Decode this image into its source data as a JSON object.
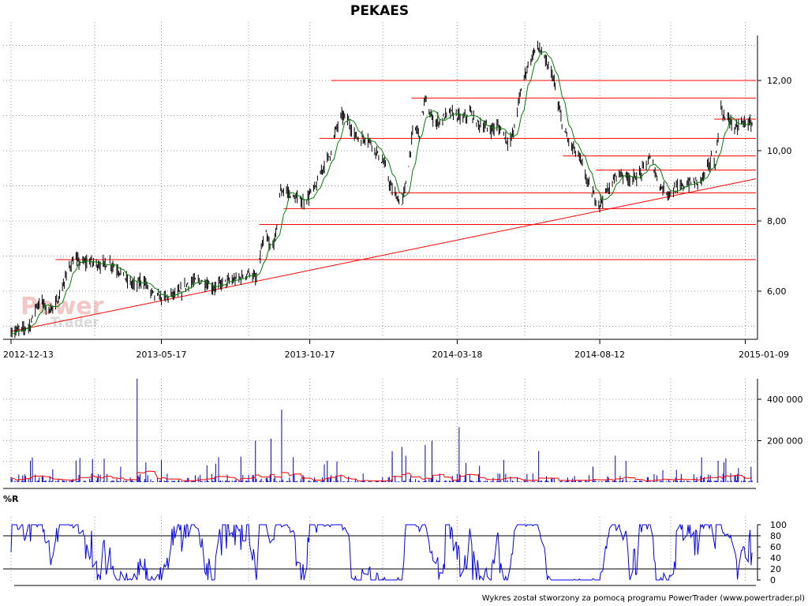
{
  "title": "PEKAES",
  "footer": "Wykres został stworzony za pomocą programu PowerTrader (www.powertrader.pl)",
  "watermark": {
    "line1": "Power",
    "line2": "Trader"
  },
  "colors": {
    "price": "#000000",
    "ma": "#008000",
    "support": "#ff0000",
    "volume": "#0000cc",
    "volume_ma": "#ff0000",
    "wr": "#0000ff",
    "grid": "#999999"
  },
  "chart_data": [
    {
      "type": "line",
      "name": "price",
      "title": "PEKAES",
      "x_ticks": [
        "2012-12-13",
        "2013-05-17",
        "2013-10-17",
        "2014-03-18",
        "2014-08-12",
        "2015-01-09"
      ],
      "x_range": [
        "2012-12-13",
        "2015-01-20"
      ],
      "y_ticks": [
        "6,00",
        "8,00",
        "10,00",
        "12,00"
      ],
      "ylim": [
        4.85,
        13.3
      ],
      "grid": true,
      "series_close": [
        [
          "2012-12-13",
          4.85
        ],
        [
          "2012-12-24",
          4.9
        ],
        [
          "2013-01-02",
          5.05
        ],
        [
          "2013-01-08",
          5.6
        ],
        [
          "2013-01-14",
          5.7
        ],
        [
          "2013-01-20",
          5.45
        ],
        [
          "2013-01-28",
          5.6
        ],
        [
          "2013-02-04",
          6.1
        ],
        [
          "2013-02-11",
          6.7
        ],
        [
          "2013-02-16",
          6.9
        ],
        [
          "2013-02-25",
          6.8
        ],
        [
          "2013-03-05",
          6.85
        ],
        [
          "2013-03-15",
          6.75
        ],
        [
          "2013-03-25",
          6.8
        ],
        [
          "2013-04-03",
          6.6
        ],
        [
          "2013-04-12",
          6.3
        ],
        [
          "2013-04-20",
          6.15
        ],
        [
          "2013-04-28",
          6.35
        ],
        [
          "2013-05-05",
          6.0
        ],
        [
          "2013-05-12",
          5.85
        ],
        [
          "2013-05-20",
          5.8
        ],
        [
          "2013-05-28",
          5.9
        ],
        [
          "2013-06-05",
          5.95
        ],
        [
          "2013-06-13",
          6.2
        ],
        [
          "2013-06-22",
          6.3
        ],
        [
          "2013-07-01",
          6.25
        ],
        [
          "2013-07-10",
          6.1
        ],
        [
          "2013-07-20",
          6.25
        ],
        [
          "2013-07-30",
          6.3
        ],
        [
          "2013-08-08",
          6.4
        ],
        [
          "2013-08-16",
          6.55
        ],
        [
          "2013-08-23",
          6.3
        ],
        [
          "2013-08-28",
          7.2
        ],
        [
          "2013-09-02",
          7.6
        ],
        [
          "2013-09-07",
          7.1
        ],
        [
          "2013-09-12",
          7.6
        ],
        [
          "2013-09-16",
          8.8
        ],
        [
          "2013-09-22",
          8.9
        ],
        [
          "2013-09-28",
          8.7
        ],
        [
          "2013-10-05",
          8.6
        ],
        [
          "2013-10-12",
          8.55
        ],
        [
          "2013-10-18",
          8.8
        ],
        [
          "2013-10-24",
          9.0
        ],
        [
          "2013-10-30",
          9.5
        ],
        [
          "2013-11-07",
          9.9
        ],
        [
          "2013-11-13",
          10.6
        ],
        [
          "2013-11-19",
          11.0
        ],
        [
          "2013-11-25",
          10.9
        ],
        [
          "2013-12-01",
          10.5
        ],
        [
          "2013-12-08",
          10.3
        ],
        [
          "2013-12-14",
          10.4
        ],
        [
          "2013-12-20",
          10.2
        ],
        [
          "2013-12-26",
          9.9
        ],
        [
          "2014-01-02",
          9.6
        ],
        [
          "2014-01-08",
          9.0
        ],
        [
          "2014-01-14",
          8.7
        ],
        [
          "2014-01-20",
          8.45
        ],
        [
          "2014-01-26",
          9.4
        ],
        [
          "2014-02-01",
          10.7
        ],
        [
          "2014-02-07",
          10.5
        ],
        [
          "2014-02-13",
          11.5
        ],
        [
          "2014-02-18",
          11.0
        ],
        [
          "2014-02-24",
          10.8
        ],
        [
          "2014-03-03",
          10.9
        ],
        [
          "2014-03-10",
          11.1
        ],
        [
          "2014-03-17",
          11.0
        ],
        [
          "2014-03-24",
          10.9
        ],
        [
          "2014-03-31",
          11.1
        ],
        [
          "2014-04-07",
          10.8
        ],
        [
          "2014-04-14",
          10.7
        ],
        [
          "2014-04-21",
          10.6
        ],
        [
          "2014-04-28",
          10.7
        ],
        [
          "2014-05-05",
          10.5
        ],
        [
          "2014-05-10",
          10.2
        ],
        [
          "2014-05-15",
          10.5
        ],
        [
          "2014-05-21",
          11.5
        ],
        [
          "2014-05-27",
          12.2
        ],
        [
          "2014-06-02",
          12.6
        ],
        [
          "2014-06-08",
          13.0
        ],
        [
          "2014-06-13",
          12.8
        ],
        [
          "2014-06-19",
          12.4
        ],
        [
          "2014-06-24",
          12.2
        ],
        [
          "2014-06-30",
          11.3
        ],
        [
          "2014-07-05",
          10.7
        ],
        [
          "2014-07-10",
          10.3
        ],
        [
          "2014-07-15",
          10.1
        ],
        [
          "2014-07-22",
          9.8
        ],
        [
          "2014-07-27",
          9.4
        ],
        [
          "2014-08-02",
          8.9
        ],
        [
          "2014-08-08",
          8.6
        ],
        [
          "2014-08-12",
          8.5
        ],
        [
          "2014-08-18",
          8.8
        ],
        [
          "2014-08-24",
          9.0
        ],
        [
          "2014-08-30",
          9.4
        ],
        [
          "2014-09-06",
          9.3
        ],
        [
          "2014-09-14",
          9.2
        ],
        [
          "2014-09-22",
          9.3
        ],
        [
          "2014-09-28",
          9.6
        ],
        [
          "2014-10-04",
          9.8
        ],
        [
          "2014-10-10",
          9.2
        ],
        [
          "2014-10-16",
          8.9
        ],
        [
          "2014-10-22",
          8.8
        ],
        [
          "2014-10-29",
          8.9
        ],
        [
          "2014-11-06",
          9.0
        ],
        [
          "2014-11-14",
          9.1
        ],
        [
          "2014-11-22",
          9.1
        ],
        [
          "2014-11-30",
          9.4
        ],
        [
          "2014-12-05",
          9.8
        ],
        [
          "2014-12-09",
          9.6
        ],
        [
          "2014-12-12",
          10.5
        ],
        [
          "2014-12-15",
          11.2
        ],
        [
          "2014-12-19",
          10.9
        ],
        [
          "2014-12-24",
          10.9
        ],
        [
          "2014-12-30",
          10.6
        ],
        [
          "2015-01-05",
          10.8
        ],
        [
          "2015-01-10",
          10.8
        ],
        [
          "2015-01-16",
          10.75
        ]
      ],
      "support_lines": [
        6.9,
        7.9,
        8.35,
        8.8,
        9.45,
        9.85,
        10.35,
        11.5,
        12.0,
        10.9
      ],
      "trend_line": [
        [
          "2012-12-13",
          4.85
        ],
        [
          "2015-01-20",
          9.2
        ]
      ]
    },
    {
      "type": "bar",
      "name": "volume",
      "y_ticks": [
        "200 000",
        "400 000"
      ],
      "ylim": [
        0,
        500000
      ],
      "peaks": [
        [
          "2013-04-22",
          500000
        ],
        [
          "2013-09-18",
          350000
        ],
        [
          "2013-09-07",
          210000
        ],
        [
          "2013-08-22",
          200000
        ],
        [
          "2014-03-20",
          265000
        ],
        [
          "2014-01-20",
          170000
        ],
        [
          "2014-01-10",
          150000
        ],
        [
          "2014-02-13",
          180000
        ],
        [
          "2014-02-20",
          200000
        ],
        [
          "2014-06-10",
          150000
        ],
        [
          "2014-11-25",
          120000
        ],
        [
          "2014-12-20",
          115000
        ]
      ]
    },
    {
      "type": "line",
      "name": "%R",
      "title": "%R",
      "y_ticks": [
        "0",
        "20",
        "40",
        "60",
        "80",
        "100"
      ],
      "ylim": [
        0,
        100
      ],
      "levels": [
        20,
        80
      ]
    }
  ]
}
